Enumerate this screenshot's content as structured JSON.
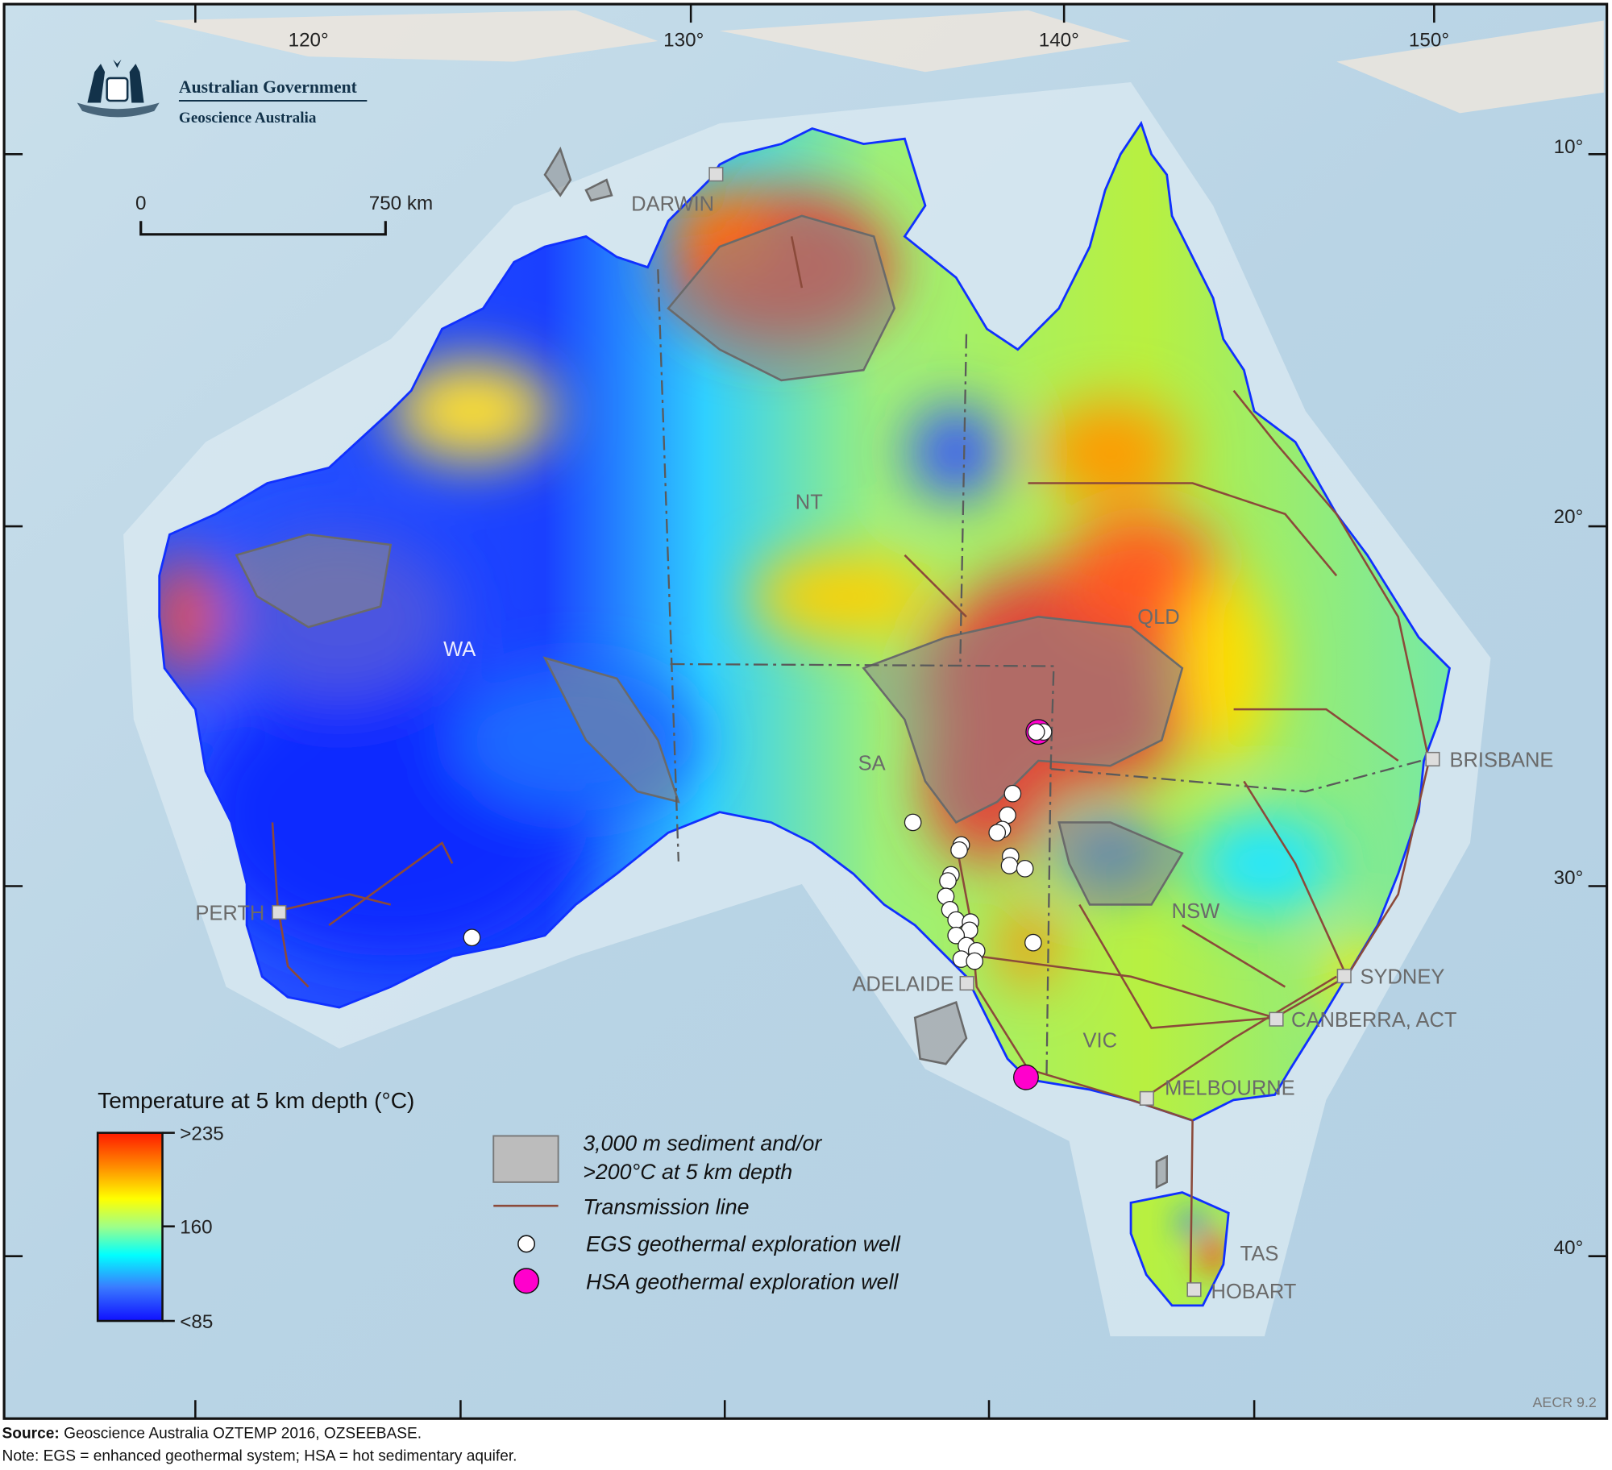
{
  "logo": {
    "line1": "Australian Government",
    "line2": "Geoscience Australia"
  },
  "scale_bar": {
    "start": "0",
    "end": "750 km"
  },
  "longitude_labels": [
    "120°",
    "130°",
    "140°",
    "150°"
  ],
  "latitude_labels": [
    "10°",
    "20°",
    "30°",
    "40°"
  ],
  "regions": {
    "wa": "WA",
    "nt": "NT",
    "sa": "SA",
    "qld": "QLD",
    "nsw": "NSW",
    "vic": "VIC",
    "tas": "TAS"
  },
  "cities": {
    "darwin": "DARWIN",
    "perth": "PERTH",
    "adelaide": "ADELAIDE",
    "brisbane": "BRISBANE",
    "sydney": "SYDNEY",
    "canberra": "CANBERRA, ACT",
    "melbourne": "MELBOURNE",
    "hobart": "HOBART"
  },
  "legend": {
    "title": "Temperature at 5 km depth (°C)",
    "scale_max": ">235",
    "scale_mid": "160",
    "scale_min": "<85",
    "colors": [
      "#ff1a00",
      "#ff8c00",
      "#ffff00",
      "#9dff8a",
      "#00ffff",
      "#3a7bff",
      "#1010ff"
    ],
    "sediment_line1": "3,000 m sediment and/or",
    "sediment_line2": ">200°C at 5 km depth",
    "transmission": "Transmission line",
    "egs": "EGS geothermal exploration well",
    "hsa": "HSA geothermal exploration well",
    "egs_color": "#ffffff",
    "hsa_color": "#ff00cc",
    "transmission_color": "#8b4a3a"
  },
  "figure_code": "AECR 9.2",
  "footer": {
    "source_label": "Source:",
    "source_text": " Geoscience Australia OZTEMP 2016, OZSEEBASE.",
    "note": "Note: EGS = enhanced geothermal system; HSA = hot sedimentary aquifer."
  }
}
